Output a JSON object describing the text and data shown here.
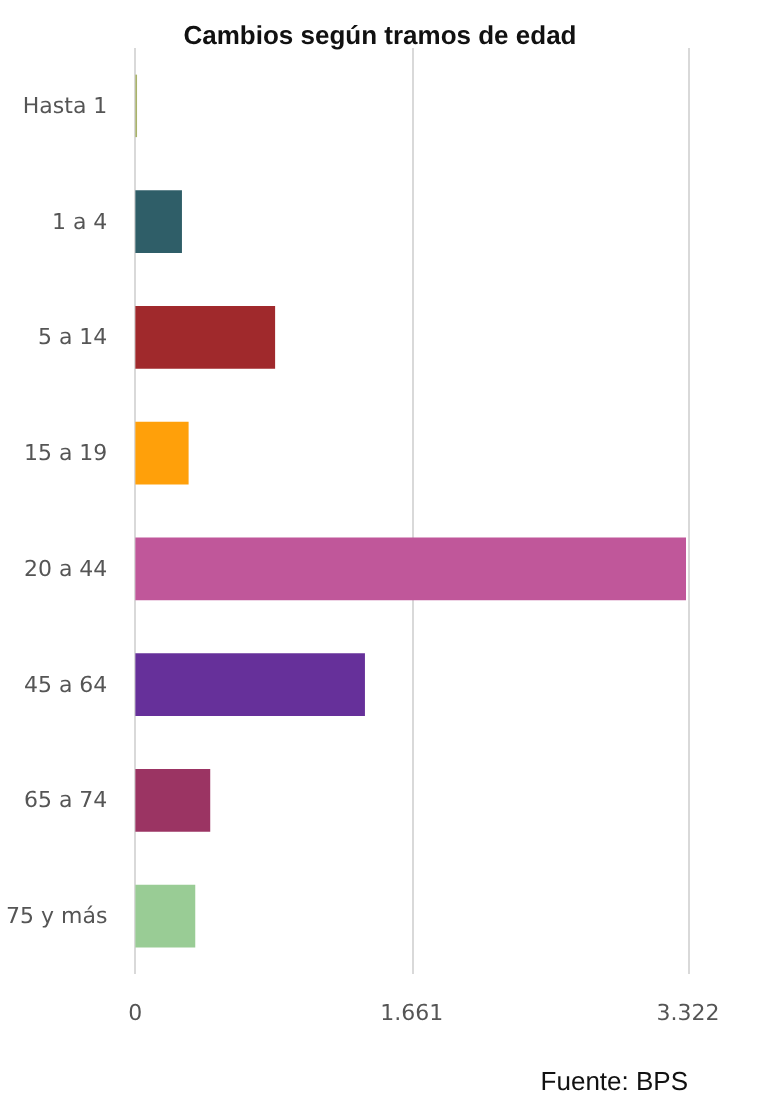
{
  "chart_data": {
    "type": "bar",
    "orientation": "horizontal",
    "title": "Cambios según tramos de edad",
    "categories": [
      "Hasta 1",
      "1 a 4",
      "5 a 14",
      "15 a 19",
      "20 a 44",
      "45 a 64",
      "65 a 74",
      "75 y más"
    ],
    "values": [
      10,
      280,
      840,
      320,
      3310,
      1380,
      450,
      360
    ],
    "colors": [
      "#a9b36a",
      "#2f5e68",
      "#a0292c",
      "#ffa00a",
      "#c0579a",
      "#66309a",
      "#9b3463",
      "#99cc95"
    ],
    "xlim": [
      0,
      3322
    ],
    "xticks": [
      0,
      {
        "value": 1661,
        "label": "1.661"
      },
      {
        "value": 3322,
        "label": "3.322"
      }
    ],
    "grid": "x",
    "annotations": [
      "Fuente: BPS"
    ]
  }
}
